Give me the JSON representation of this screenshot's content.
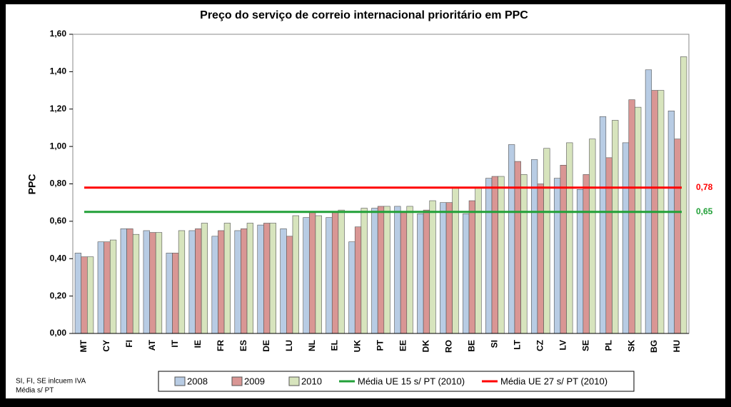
{
  "chart_data": {
    "type": "bar",
    "title": "Preço do serviço de correio internacional prioritário em PPC",
    "y_label": "PPC",
    "categories": [
      "MT",
      "CY",
      "FI",
      "AT",
      "IT",
      "IE",
      "FR",
      "ES",
      "DE",
      "LU",
      "NL",
      "EL",
      "UK",
      "PT",
      "EE",
      "DK",
      "RO",
      "BE",
      "SI",
      "LT",
      "CZ",
      "LV",
      "SE",
      "PL",
      "SK",
      "BG",
      "HU"
    ],
    "series": [
      {
        "name": "2008",
        "color": "#b8cce4",
        "values": [
          0.43,
          0.49,
          0.56,
          0.55,
          0.43,
          0.55,
          0.52,
          0.55,
          0.58,
          0.56,
          0.62,
          0.62,
          0.49,
          0.67,
          0.68,
          0.64,
          0.7,
          0.64,
          0.83,
          1.01,
          0.93,
          0.83,
          0.77,
          1.16,
          1.02,
          1.41,
          1.19
        ]
      },
      {
        "name": "2009",
        "color": "#d99694",
        "values": [
          0.41,
          0.49,
          0.56,
          0.54,
          0.43,
          0.56,
          0.55,
          0.56,
          0.59,
          0.52,
          0.65,
          0.65,
          0.57,
          0.68,
          0.65,
          0.66,
          0.7,
          0.71,
          0.84,
          0.92,
          0.8,
          0.9,
          0.85,
          0.94,
          1.25,
          1.3,
          1.04
        ]
      },
      {
        "name": "2010",
        "color": "#d7e4bd",
        "values": [
          0.41,
          0.5,
          0.53,
          0.54,
          0.55,
          0.59,
          0.59,
          0.59,
          0.59,
          0.63,
          0.63,
          0.66,
          0.67,
          0.68,
          0.68,
          0.71,
          0.78,
          0.78,
          0.84,
          0.85,
          0.99,
          1.02,
          1.04,
          1.14,
          1.21,
          1.3,
          1.48
        ]
      }
    ],
    "lines": [
      {
        "name": "Média UE 15 s/ PT (2010)",
        "color": "#22a038",
        "value": 0.65,
        "value_label": "0,65"
      },
      {
        "name": "Média UE 27 s/ PT (2010)",
        "color": "#ff0000",
        "value": 0.78,
        "value_label": "0,78"
      }
    ],
    "ylim": [
      0,
      1.6
    ],
    "yticks": [
      {
        "value": 0,
        "label": "0,00"
      },
      {
        "value": 0.2,
        "label": "0,20"
      },
      {
        "value": 0.4,
        "label": "0,40"
      },
      {
        "value": 0.6,
        "label": "0,60"
      },
      {
        "value": 0.8,
        "label": "0,80"
      },
      {
        "value": 1.0,
        "label": "1,00"
      },
      {
        "value": 1.2,
        "label": "1,20"
      },
      {
        "value": 1.4,
        "label": "1,40"
      },
      {
        "value": 1.6,
        "label": "1,60"
      }
    ],
    "notes": [
      "SI, FI, SE inlcuem IVA",
      "Média s/  PT"
    ]
  }
}
